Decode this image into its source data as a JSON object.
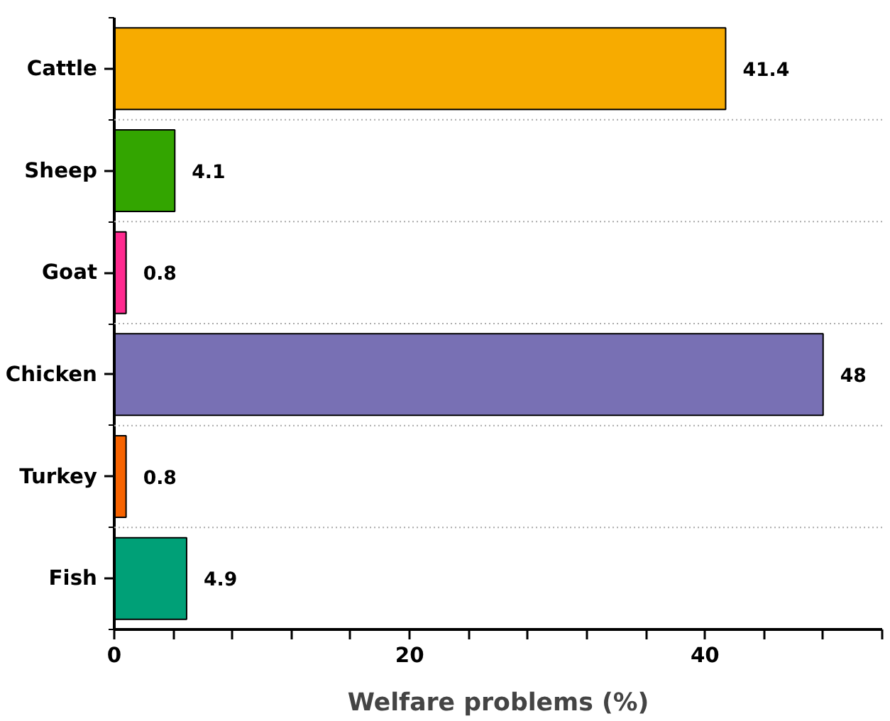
{
  "chart_data": {
    "type": "bar",
    "orientation": "horizontal",
    "xlabel": "Welfare problems (%)",
    "categories": [
      "Cattle",
      "Sheep",
      "Goat",
      "Chicken",
      "Turkey",
      "Fish"
    ],
    "values": [
      41.4,
      4.1,
      0.8,
      48,
      0.8,
      4.9
    ],
    "colors": [
      "#f7ab00",
      "#33a500",
      "#ff2a8f",
      "#7870b4",
      "#f76300",
      "#00a077"
    ],
    "data_labels": true,
    "xlim": [
      0,
      52
    ],
    "xticks": [
      0,
      {
        "value": 4,
        "label": null
      },
      {
        "value": 8,
        "label": null
      },
      {
        "value": 12,
        "label": null
      },
      {
        "value": 16,
        "label": null
      },
      20,
      {
        "value": 24,
        "label": null
      },
      {
        "value": 28,
        "label": null
      },
      {
        "value": 32,
        "label": null
      },
      {
        "value": 36,
        "label": null
      },
      40,
      {
        "value": 44,
        "label": null
      },
      {
        "value": 48,
        "label": null
      },
      {
        "value": 52,
        "label": null
      }
    ],
    "grid": "y"
  }
}
